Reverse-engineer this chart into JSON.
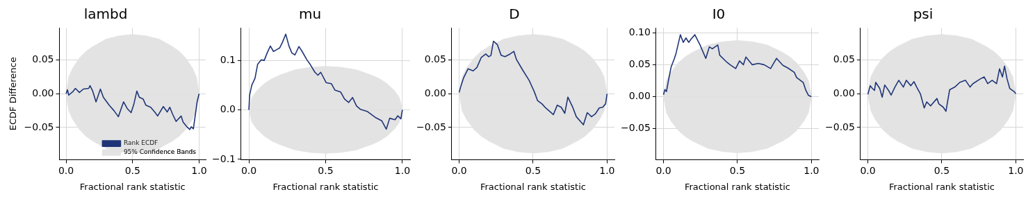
{
  "chart_data": [
    {
      "type": "line",
      "title": "lambd",
      "xlabel": "Fractional rank statistic",
      "ylabel": "ECDF Difference",
      "xlim": [
        -0.05,
        1.05
      ],
      "ylim": [
        -0.098,
        0.098
      ],
      "xticks": [
        {
          "value": 0,
          "label": "0.0"
        },
        {
          "value": 0.5,
          "label": "0.5"
        },
        {
          "value": 1,
          "label": "1.0"
        }
      ],
      "yticks": [
        {
          "value": -0.05,
          "label": "−0.05"
        },
        {
          "value": 0,
          "label": "0.00"
        },
        {
          "value": 0.05,
          "label": "0.05"
        }
      ],
      "grid": true,
      "legend": "bottom right",
      "series": [
        {
          "name": "95% Confidence Bands",
          "type": "area",
          "color": "#e3e3e3",
          "x": [
            0,
            0.02,
            0.05,
            0.1,
            0.15,
            0.2,
            0.3,
            0.4,
            0.5,
            0.6,
            0.7,
            0.8,
            0.85,
            0.9,
            0.95,
            0.98,
            1
          ],
          "values": [
            0,
            0.025,
            0.038,
            0.053,
            0.063,
            0.07,
            0.081,
            0.086,
            0.088,
            0.086,
            0.081,
            0.07,
            0.063,
            0.053,
            0.038,
            0.025,
            0
          ]
        },
        {
          "type": "area",
          "color": "#e3e3e3",
          "x": [
            0,
            0.02,
            0.05,
            0.1,
            0.15,
            0.2,
            0.3,
            0.4,
            0.5,
            0.6,
            0.7,
            0.8,
            0.85,
            0.9,
            0.95,
            0.98,
            1
          ],
          "values": [
            0,
            -0.025,
            -0.038,
            -0.053,
            -0.063,
            -0.07,
            -0.081,
            -0.086,
            -0.088,
            -0.086,
            -0.081,
            -0.07,
            -0.063,
            -0.053,
            -0.038,
            -0.025,
            0
          ]
        },
        {
          "name": "Rank ECDF",
          "type": "line",
          "color": "#1f3577",
          "x": [
            0,
            0.01,
            0.02,
            0.05,
            0.07,
            0.1,
            0.13,
            0.17,
            0.18,
            0.2,
            0.225,
            0.258,
            0.28,
            0.324,
            0.36,
            0.393,
            0.432,
            0.46,
            0.489,
            0.51,
            0.532,
            0.55,
            0.58,
            0.6,
            0.636,
            0.67,
            0.688,
            0.731,
            0.76,
            0.78,
            0.8,
            0.827,
            0.865,
            0.88,
            0.913,
            0.93,
            0.941,
            0.957,
            0.974,
            0.985,
            1
          ],
          "values": [
            0,
            0.006,
            -0.002,
            0.003,
            0.008,
            0.002,
            0.007,
            0.008,
            0.012,
            0.004,
            -0.012,
            0.007,
            -0.005,
            -0.017,
            -0.025,
            -0.034,
            -0.012,
            -0.022,
            -0.028,
            -0.015,
            0.004,
            -0.005,
            -0.008,
            -0.017,
            -0.02,
            -0.028,
            -0.033,
            -0.019,
            -0.027,
            -0.02,
            -0.03,
            -0.041,
            -0.033,
            -0.042,
            -0.05,
            -0.053,
            -0.049,
            -0.052,
            -0.028,
            -0.012,
            0
          ]
        }
      ]
    },
    {
      "type": "line",
      "title": "mu",
      "xlabel": "Fractional rank statistic",
      "xlim": [
        -0.05,
        1.05
      ],
      "ylim": [
        -0.101,
        0.166
      ],
      "xticks": [
        {
          "value": 0,
          "label": "0.0"
        },
        {
          "value": 0.5,
          "label": "0.5"
        },
        {
          "value": 1,
          "label": "1.0"
        }
      ],
      "yticks": [
        {
          "value": -0.1,
          "label": "−0.1"
        },
        {
          "value": 0,
          "label": "0.0"
        },
        {
          "value": 0.1,
          "label": "0.1"
        }
      ],
      "grid": true,
      "series": [
        {
          "type": "area",
          "color": "#e3e3e3",
          "x": [
            0,
            0.02,
            0.05,
            0.1,
            0.15,
            0.2,
            0.3,
            0.4,
            0.5,
            0.6,
            0.7,
            0.8,
            0.85,
            0.9,
            0.95,
            0.98,
            1
          ],
          "values": [
            0,
            0.025,
            0.038,
            0.053,
            0.063,
            0.07,
            0.081,
            0.086,
            0.088,
            0.086,
            0.081,
            0.07,
            0.063,
            0.053,
            0.038,
            0.025,
            0
          ]
        },
        {
          "type": "area",
          "color": "#e3e3e3",
          "x": [
            0,
            0.02,
            0.05,
            0.1,
            0.15,
            0.2,
            0.3,
            0.4,
            0.5,
            0.6,
            0.7,
            0.8,
            0.85,
            0.9,
            0.95,
            0.98,
            1
          ],
          "values": [
            0,
            -0.025,
            -0.038,
            -0.053,
            -0.063,
            -0.07,
            -0.081,
            -0.086,
            -0.088,
            -0.086,
            -0.081,
            -0.07,
            -0.063,
            -0.053,
            -0.038,
            -0.025,
            0
          ]
        },
        {
          "type": "line",
          "color": "#1f3577",
          "x": [
            0,
            0.005,
            0.019,
            0.04,
            0.057,
            0.08,
            0.1,
            0.119,
            0.14,
            0.16,
            0.183,
            0.2,
            0.218,
            0.24,
            0.261,
            0.28,
            0.3,
            0.326,
            0.347,
            0.378,
            0.399,
            0.43,
            0.45,
            0.468,
            0.503,
            0.537,
            0.56,
            0.598,
            0.623,
            0.65,
            0.675,
            0.701,
            0.727,
            0.77,
            0.822,
            0.865,
            0.895,
            0.917,
            0.952,
            0.97,
            0.99,
            1
          ],
          "values": [
            0,
            0.03,
            0.05,
            0.064,
            0.092,
            0.101,
            0.1,
            0.115,
            0.129,
            0.118,
            0.122,
            0.125,
            0.136,
            0.153,
            0.129,
            0.115,
            0.111,
            0.128,
            0.118,
            0.101,
            0.092,
            0.076,
            0.07,
            0.076,
            0.055,
            0.053,
            0.04,
            0.036,
            0.022,
            0.015,
            0.025,
            0.008,
            0.001,
            -0.003,
            -0.015,
            -0.022,
            -0.039,
            -0.017,
            -0.02,
            -0.012,
            -0.018,
            0
          ]
        }
      ]
    },
    {
      "type": "line",
      "title": "D",
      "xlabel": "Fractional rank statistic",
      "xlim": [
        -0.05,
        1.05
      ],
      "ylim": [
        -0.098,
        0.098
      ],
      "xticks": [
        {
          "value": 0,
          "label": "0.0"
        },
        {
          "value": 0.5,
          "label": "0.5"
        },
        {
          "value": 1,
          "label": "1.0"
        }
      ],
      "yticks": [
        {
          "value": -0.05,
          "label": "−0.05"
        },
        {
          "value": 0,
          "label": "0.00"
        },
        {
          "value": 0.05,
          "label": "0.05"
        }
      ],
      "grid": true,
      "series": [
        {
          "type": "area",
          "color": "#e3e3e3",
          "x": [
            0,
            0.02,
            0.05,
            0.1,
            0.15,
            0.2,
            0.3,
            0.4,
            0.5,
            0.6,
            0.7,
            0.8,
            0.85,
            0.9,
            0.95,
            0.98,
            1
          ],
          "values": [
            0,
            0.025,
            0.038,
            0.053,
            0.063,
            0.07,
            0.081,
            0.086,
            0.088,
            0.086,
            0.081,
            0.07,
            0.063,
            0.053,
            0.038,
            0.025,
            0
          ]
        },
        {
          "type": "area",
          "color": "#e3e3e3",
          "x": [
            0,
            0.02,
            0.05,
            0.1,
            0.15,
            0.2,
            0.3,
            0.4,
            0.5,
            0.6,
            0.7,
            0.8,
            0.85,
            0.9,
            0.95,
            0.98,
            1
          ],
          "values": [
            0,
            -0.025,
            -0.038,
            -0.053,
            -0.063,
            -0.07,
            -0.081,
            -0.086,
            -0.088,
            -0.086,
            -0.081,
            -0.07,
            -0.063,
            -0.053,
            -0.038,
            -0.025,
            0
          ]
        },
        {
          "type": "line",
          "color": "#1f3577",
          "x": [
            0,
            0.01,
            0.029,
            0.06,
            0.095,
            0.12,
            0.15,
            0.18,
            0.2,
            0.215,
            0.232,
            0.258,
            0.284,
            0.31,
            0.344,
            0.37,
            0.387,
            0.43,
            0.473,
            0.508,
            0.53,
            0.56,
            0.585,
            0.637,
            0.663,
            0.69,
            0.714,
            0.735,
            0.766,
            0.792,
            0.84,
            0.866,
            0.895,
            0.92,
            0.947,
            0.97,
            0.99,
            1
          ],
          "values": [
            0.002,
            0.01,
            0.023,
            0.037,
            0.034,
            0.039,
            0.054,
            0.059,
            0.055,
            0.057,
            0.078,
            0.073,
            0.057,
            0.055,
            0.059,
            0.063,
            0.051,
            0.035,
            0.02,
            0.003,
            -0.01,
            -0.015,
            -0.021,
            -0.031,
            -0.017,
            -0.02,
            -0.029,
            -0.005,
            -0.019,
            -0.034,
            -0.046,
            -0.028,
            -0.034,
            -0.03,
            -0.021,
            -0.02,
            -0.015,
            0
          ]
        }
      ]
    },
    {
      "type": "line",
      "title": "I0",
      "xlabel": "Fractional rank statistic",
      "xlim": [
        -0.05,
        1.05
      ],
      "ylim": [
        -0.099,
        0.108
      ],
      "xticks": [
        {
          "value": 0,
          "label": "0.0"
        },
        {
          "value": 0.5,
          "label": "0.5"
        },
        {
          "value": 1,
          "label": "1.0"
        }
      ],
      "yticks": [
        {
          "value": -0.05,
          "label": "−0.05"
        },
        {
          "value": 0,
          "label": "0.00"
        },
        {
          "value": 0.05,
          "label": "0.05"
        },
        {
          "value": 0.1,
          "label": "0.10"
        }
      ],
      "grid": true,
      "series": [
        {
          "type": "area",
          "color": "#e3e3e3",
          "x": [
            0,
            0.02,
            0.05,
            0.1,
            0.15,
            0.2,
            0.3,
            0.4,
            0.5,
            0.6,
            0.7,
            0.8,
            0.85,
            0.9,
            0.95,
            0.98,
            1
          ],
          "values": [
            0,
            0.025,
            0.038,
            0.053,
            0.063,
            0.07,
            0.081,
            0.086,
            0.088,
            0.086,
            0.081,
            0.07,
            0.063,
            0.053,
            0.038,
            0.025,
            0
          ]
        },
        {
          "type": "area",
          "color": "#e3e3e3",
          "x": [
            0,
            0.02,
            0.05,
            0.1,
            0.15,
            0.2,
            0.3,
            0.4,
            0.5,
            0.6,
            0.7,
            0.8,
            0.85,
            0.9,
            0.95,
            0.98,
            1
          ],
          "values": [
            0,
            -0.025,
            -0.038,
            -0.053,
            -0.063,
            -0.07,
            -0.081,
            -0.086,
            -0.088,
            -0.086,
            -0.081,
            -0.07,
            -0.063,
            -0.053,
            -0.038,
            -0.025,
            0
          ]
        },
        {
          "type": "line",
          "color": "#1f3577",
          "x": [
            0,
            0.009,
            0.02,
            0.034,
            0.052,
            0.074,
            0.086,
            0.114,
            0.134,
            0.152,
            0.17,
            0.186,
            0.212,
            0.247,
            0.286,
            0.31,
            0.33,
            0.367,
            0.38,
            0.428,
            0.45,
            0.488,
            0.514,
            0.54,
            0.557,
            0.6,
            0.64,
            0.68,
            0.724,
            0.764,
            0.807,
            0.84,
            0.884,
            0.9,
            0.945,
            0.962,
            0.98,
            1
          ],
          "values": [
            0.003,
            0.011,
            0.008,
            0.026,
            0.047,
            0.06,
            0.069,
            0.097,
            0.085,
            0.092,
            0.085,
            0.09,
            0.097,
            0.081,
            0.06,
            0.078,
            0.075,
            0.081,
            0.065,
            0.054,
            0.05,
            0.044,
            0.056,
            0.05,
            0.062,
            0.05,
            0.052,
            0.05,
            0.044,
            0.06,
            0.049,
            0.045,
            0.038,
            0.03,
            0.022,
            0.01,
            0.002,
            0
          ]
        }
      ]
    },
    {
      "type": "line",
      "title": "psi",
      "xlabel": "Fractional rank statistic",
      "xlim": [
        -0.05,
        1.05
      ],
      "ylim": [
        -0.098,
        0.098
      ],
      "xticks": [
        {
          "value": 0,
          "label": "0.0"
        },
        {
          "value": 0.5,
          "label": "0.5"
        },
        {
          "value": 1,
          "label": "1.0"
        }
      ],
      "yticks": [
        {
          "value": -0.05,
          "label": "−0.05"
        },
        {
          "value": 0,
          "label": "0.00"
        },
        {
          "value": 0.05,
          "label": "0.05"
        }
      ],
      "grid": true,
      "series": [
        {
          "type": "area",
          "color": "#e3e3e3",
          "x": [
            0,
            0.02,
            0.05,
            0.1,
            0.15,
            0.2,
            0.3,
            0.4,
            0.5,
            0.6,
            0.7,
            0.8,
            0.85,
            0.9,
            0.95,
            0.98,
            1
          ],
          "values": [
            0,
            0.025,
            0.038,
            0.053,
            0.063,
            0.07,
            0.081,
            0.086,
            0.088,
            0.086,
            0.081,
            0.07,
            0.063,
            0.053,
            0.038,
            0.025,
            0
          ]
        },
        {
          "type": "area",
          "color": "#e3e3e3",
          "x": [
            0,
            0.02,
            0.05,
            0.1,
            0.15,
            0.2,
            0.3,
            0.4,
            0.5,
            0.6,
            0.7,
            0.8,
            0.85,
            0.9,
            0.95,
            0.98,
            1
          ],
          "values": [
            0,
            -0.025,
            -0.038,
            -0.053,
            -0.063,
            -0.07,
            -0.081,
            -0.086,
            -0.088,
            -0.086,
            -0.081,
            -0.07,
            -0.063,
            -0.053,
            -0.038,
            -0.025,
            0
          ]
        },
        {
          "type": "line",
          "color": "#1f3577",
          "x": [
            0,
            0.016,
            0.03,
            0.045,
            0.053,
            0.08,
            0.097,
            0.114,
            0.14,
            0.157,
            0.183,
            0.209,
            0.24,
            0.26,
            0.29,
            0.312,
            0.33,
            0.355,
            0.381,
            0.398,
            0.424,
            0.467,
            0.48,
            0.51,
            0.528,
            0.54,
            0.553,
            0.588,
            0.622,
            0.66,
            0.691,
            0.71,
            0.76,
            0.786,
            0.81,
            0.84,
            0.87,
            0.89,
            0.91,
            0.924,
            0.941,
            0.959,
            0.99,
            1
          ],
          "values": [
            -0.001,
            0.012,
            0.008,
            0.005,
            0.017,
            0.008,
            -0.005,
            0.013,
            0.005,
            -0.002,
            0.01,
            0.02,
            0.01,
            0.02,
            0.012,
            0.018,
            0.01,
            0,
            -0.021,
            -0.012,
            -0.018,
            -0.007,
            -0.015,
            -0.02,
            -0.026,
            -0.01,
            0.006,
            0.01,
            0.017,
            0.02,
            0.01,
            0.015,
            0.022,
            0.025,
            0.015,
            0.02,
            0.015,
            0.037,
            0.025,
            0.041,
            0.022,
            0.008,
            0.003,
            0
          ]
        }
      ]
    }
  ]
}
